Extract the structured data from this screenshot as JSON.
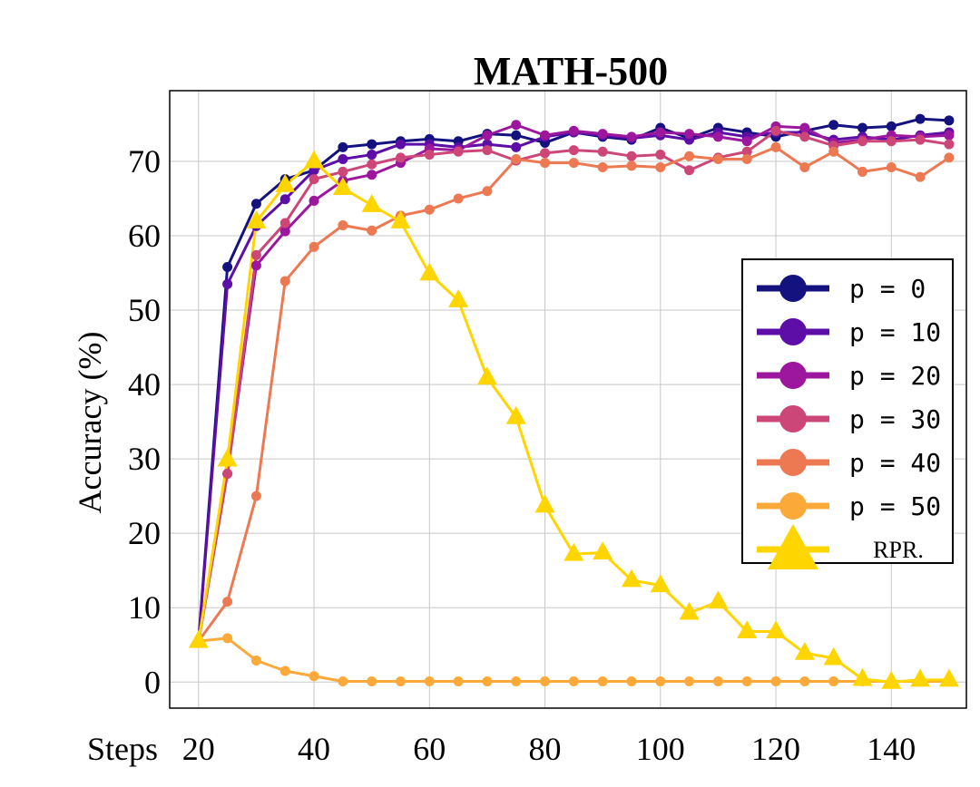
{
  "chart_data": {
    "type": "line",
    "title": "MATH-500",
    "xlabel": "Steps",
    "ylabel": "Accuracy (%)",
    "xlim": [
      15,
      153
    ],
    "ylim": [
      -3.5,
      79.5
    ],
    "xticks": [
      20,
      40,
      60,
      80,
      100,
      120,
      140
    ],
    "yticks": [
      0,
      10,
      20,
      30,
      40,
      50,
      60,
      70
    ],
    "grid": true,
    "legend_position": "right",
    "x": [
      20,
      25,
      30,
      35,
      40,
      45,
      50,
      55,
      60,
      65,
      70,
      75,
      80,
      85,
      90,
      95,
      100,
      105,
      110,
      115,
      120,
      125,
      130,
      135,
      140,
      145,
      150
    ],
    "series": [
      {
        "name": "p = 0",
        "color": "#14127e",
        "marker": "circle",
        "values": [
          5.5,
          55.8,
          64.3,
          67.6,
          68.8,
          71.9,
          72.3,
          72.7,
          73.0,
          72.7,
          73.7,
          73.5,
          72.5,
          73.9,
          73.3,
          72.9,
          74.5,
          73.1,
          74.5,
          73.9,
          73.3,
          74.1,
          74.9,
          74.5,
          74.7,
          75.7,
          75.5
        ]
      },
      {
        "name": "p = 10",
        "color": "#5c0ea7",
        "marker": "circle",
        "values": [
          5.5,
          53.5,
          61.3,
          64.9,
          68.8,
          70.3,
          70.9,
          72.3,
          72.3,
          71.9,
          72.3,
          71.9,
          73.3,
          73.9,
          73.5,
          73.1,
          73.5,
          72.9,
          73.9,
          73.3,
          73.9,
          73.9,
          72.9,
          73.3,
          72.9,
          73.5,
          73.9
        ]
      },
      {
        "name": "p = 20",
        "color": "#9c179e",
        "marker": "circle",
        "values": [
          5.5,
          28.0,
          56.0,
          60.6,
          64.7,
          67.4,
          68.2,
          69.8,
          71.7,
          71.5,
          73.5,
          74.9,
          73.5,
          74.1,
          73.7,
          73.3,
          73.9,
          73.7,
          73.3,
          72.7,
          74.7,
          74.5,
          72.5,
          72.9,
          73.5,
          73.3,
          73.5
        ]
      },
      {
        "name": "p = 30",
        "color": "#cc4778",
        "marker": "circle",
        "values": [
          5.5,
          28.0,
          57.4,
          61.7,
          67.6,
          68.6,
          69.6,
          70.5,
          70.9,
          71.3,
          71.5,
          70.1,
          71.1,
          71.5,
          71.3,
          70.7,
          70.9,
          68.8,
          70.5,
          71.3,
          74.1,
          73.3,
          72.1,
          72.7,
          72.7,
          72.9,
          72.3
        ]
      },
      {
        "name": "p = 40",
        "color": "#ed7953",
        "marker": "circle",
        "values": [
          5.5,
          10.8,
          25.0,
          53.9,
          58.5,
          61.4,
          60.7,
          62.7,
          63.5,
          65.0,
          66.0,
          70.3,
          69.8,
          69.8,
          69.2,
          69.4,
          69.2,
          70.7,
          70.3,
          70.3,
          71.9,
          69.2,
          71.3,
          68.6,
          69.2,
          67.9,
          70.5
        ]
      },
      {
        "name": "p = 50",
        "color": "#fbaa3a",
        "marker": "circle",
        "values": [
          5.5,
          5.9,
          2.9,
          1.5,
          0.8,
          0.1,
          0.1,
          0.1,
          0.1,
          0.1,
          0.1,
          0.1,
          0.1,
          0.1,
          0.1,
          0.1,
          0.1,
          0.1,
          0.1,
          0.1,
          0.1,
          0.1,
          0.1,
          0.1,
          0.1,
          0.1,
          0.1
        ]
      },
      {
        "name": "RPR.",
        "color": "#ffd500",
        "marker": "triangle",
        "values": [
          5.5,
          29.9,
          61.9,
          66.8,
          70.0,
          66.4,
          64.1,
          61.9,
          54.9,
          51.3,
          40.9,
          35.6,
          23.7,
          17.2,
          17.4,
          13.7,
          13.0,
          9.3,
          10.8,
          6.8,
          6.8,
          3.9,
          3.2,
          0.4,
          0.0,
          0.3,
          0.3
        ]
      }
    ]
  }
}
